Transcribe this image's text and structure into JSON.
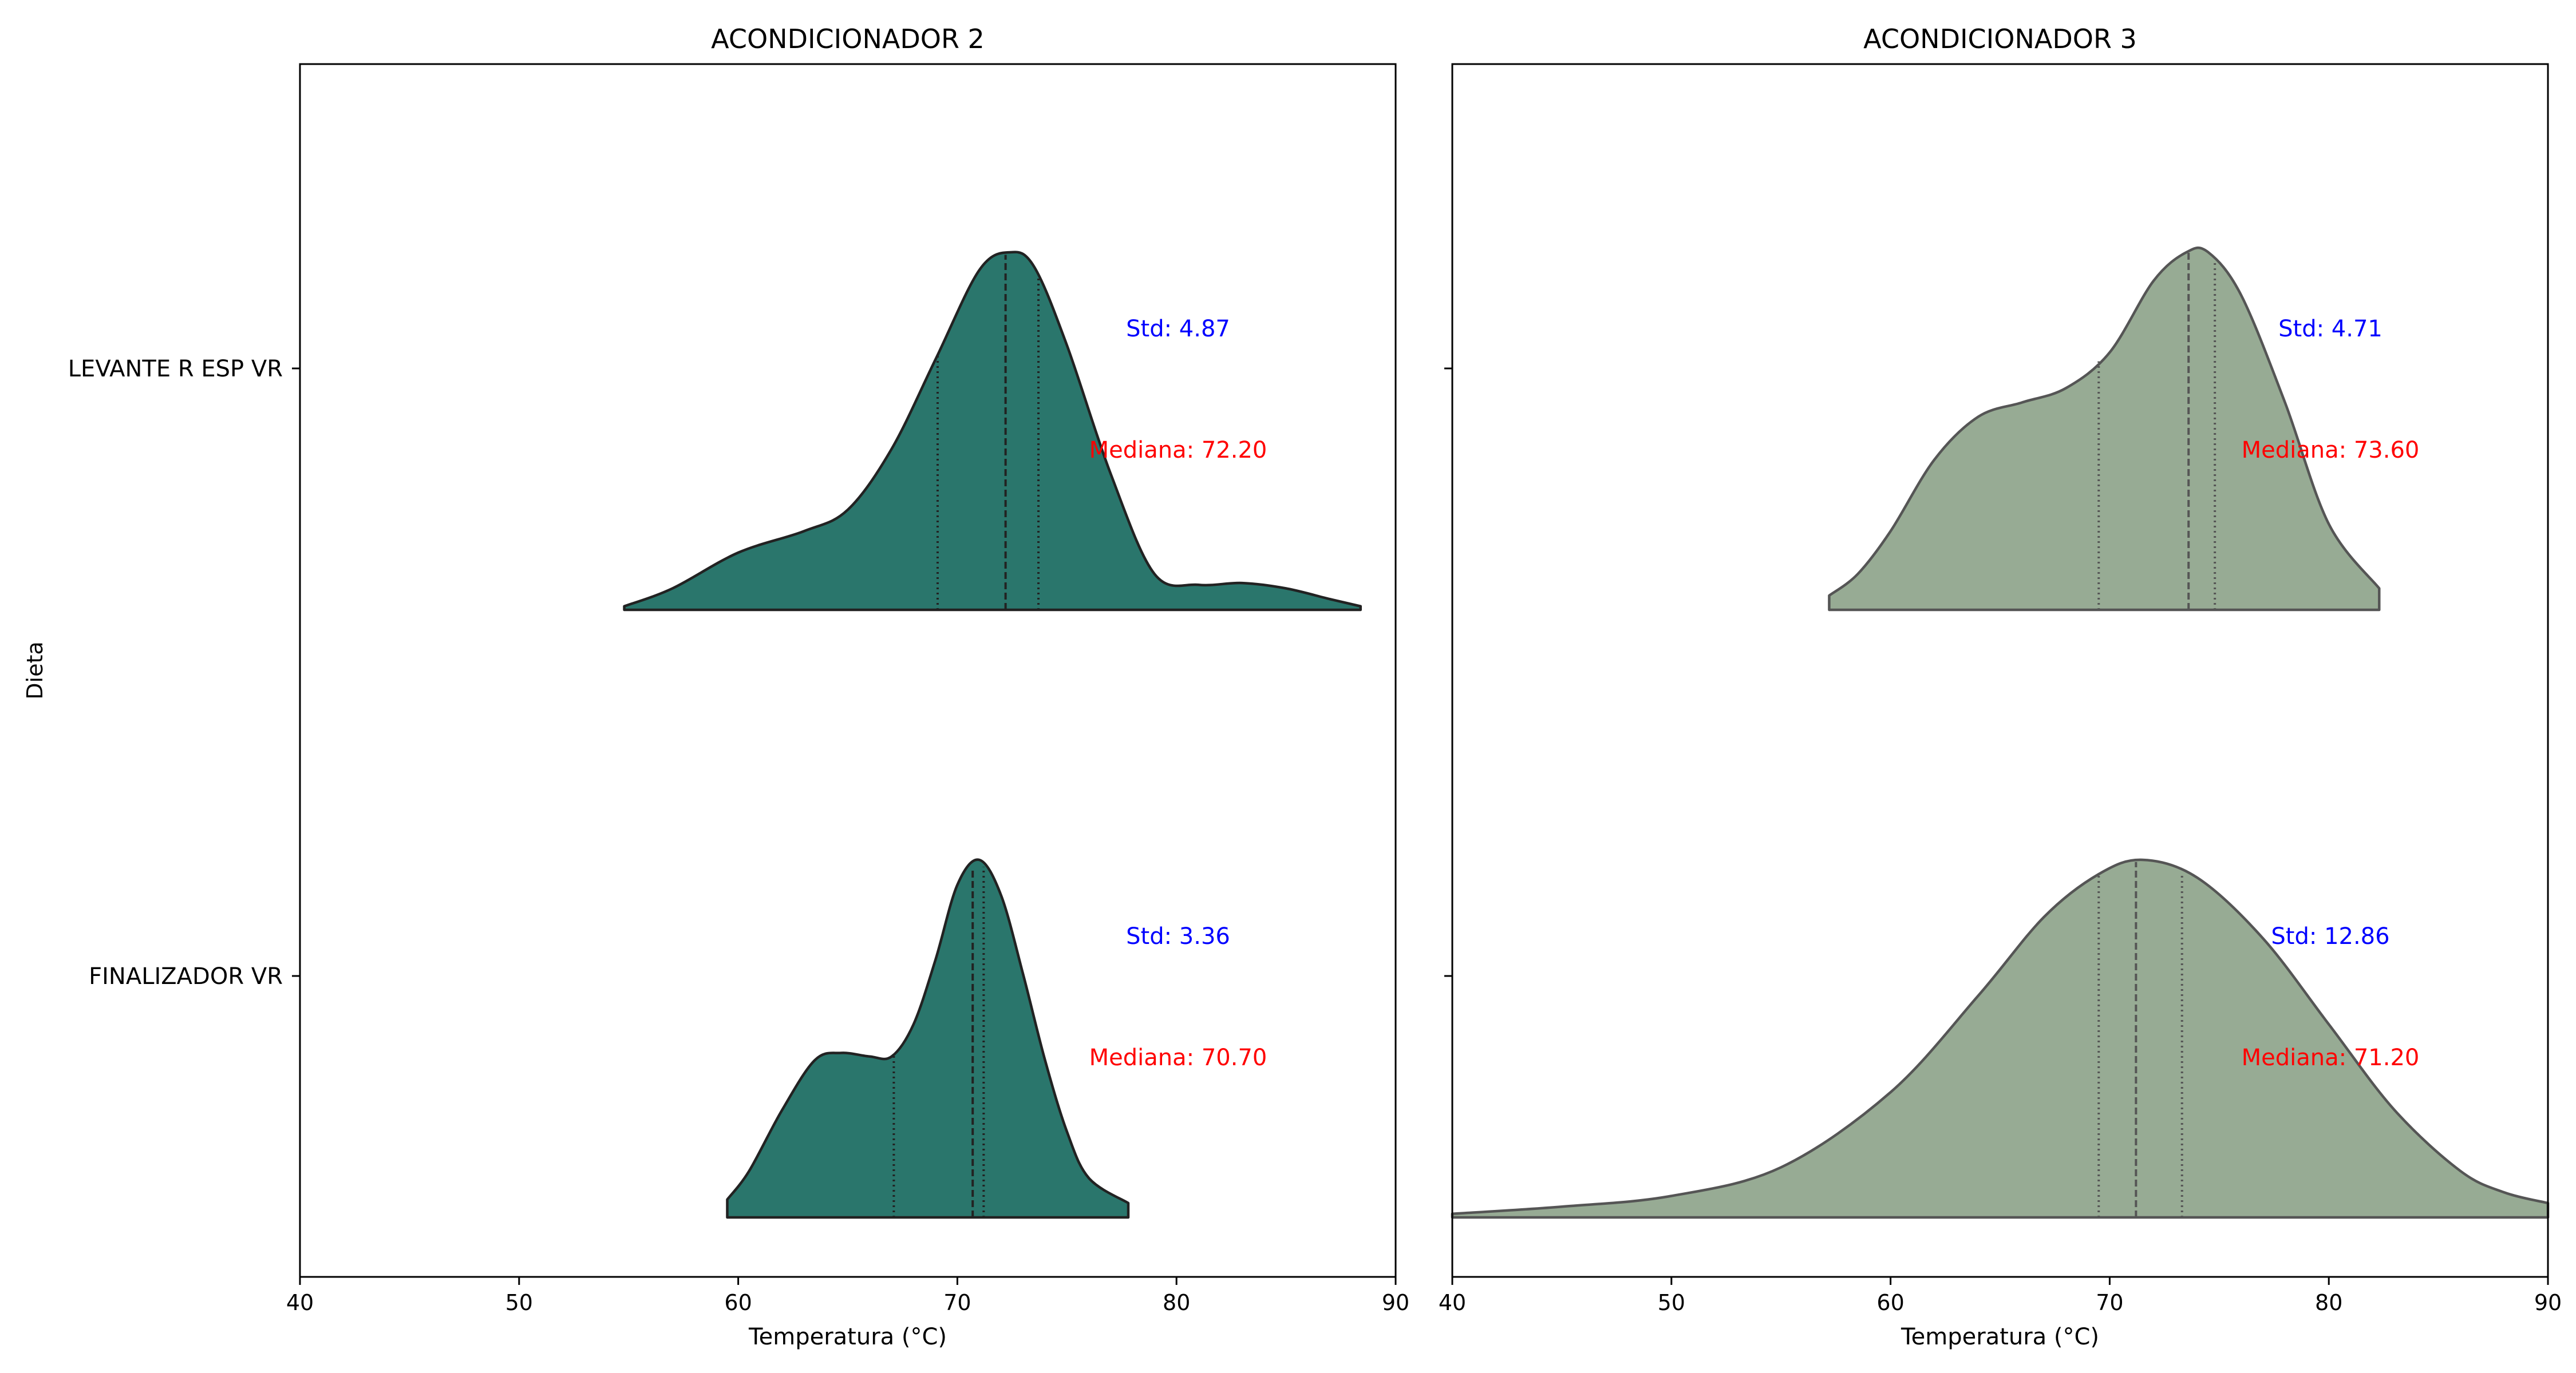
{
  "chart_data": {
    "type": "violin",
    "ylabel": "Dieta",
    "xlabel": "Temperatura (°C)",
    "categories": [
      "LEVANTE R ESP VR",
      "FINALIZADOR VR"
    ],
    "xlim": [
      40,
      90
    ],
    "xticks": [
      40,
      50,
      60,
      70,
      80,
      90
    ],
    "xtick_labels": [
      "40",
      "50",
      "60",
      "70",
      "80",
      "90"
    ],
    "std_color": "#0000ff",
    "median_color": "#ff0000",
    "panels": [
      {
        "title": "ACONDICIONADOR 2",
        "fill_color": "#2a766c",
        "edge_color": "#222222",
        "violins": [
          {
            "category": "LEVANTE R ESP VR",
            "x_min": 54.8,
            "x_max": 88.4,
            "q1": 69.1,
            "median": 72.2,
            "q3": 73.7,
            "density": [
              [
                54.8,
                0.01
              ],
              [
                57,
                0.06
              ],
              [
                60,
                0.16
              ],
              [
                63,
                0.22
              ],
              [
                65,
                0.28
              ],
              [
                67,
                0.45
              ],
              [
                69,
                0.7
              ],
              [
                71,
                0.95
              ],
              [
                72.4,
                1.0
              ],
              [
                73.5,
                0.96
              ],
              [
                75,
                0.74
              ],
              [
                77,
                0.38
              ],
              [
                79,
                0.1
              ],
              [
                81,
                0.07
              ],
              [
                83,
                0.075
              ],
              [
                85,
                0.06
              ],
              [
                87,
                0.03
              ],
              [
                88.4,
                0.01
              ]
            ],
            "std_label": "Std: 4.87",
            "median_label": "Mediana: 72.20"
          },
          {
            "category": "FINALIZADOR VR",
            "x_min": 59.5,
            "x_max": 77.8,
            "q1": 67.1,
            "median": 70.7,
            "q3": 71.2,
            "density": [
              [
                59.5,
                0.05
              ],
              [
                60.5,
                0.13
              ],
              [
                62,
                0.3
              ],
              [
                63.5,
                0.44
              ],
              [
                64.7,
                0.46
              ],
              [
                66,
                0.45
              ],
              [
                67,
                0.45
              ],
              [
                68,
                0.54
              ],
              [
                69,
                0.72
              ],
              [
                70,
                0.93
              ],
              [
                71,
                1.0
              ],
              [
                72,
                0.9
              ],
              [
                73,
                0.68
              ],
              [
                74,
                0.44
              ],
              [
                75,
                0.24
              ],
              [
                76,
                0.11
              ],
              [
                77.8,
                0.04
              ]
            ],
            "std_label": "Std: 3.36",
            "median_label": "Mediana: 70.70"
          }
        ]
      },
      {
        "title": "ACONDICIONADOR 3",
        "fill_color": "#97ab94",
        "edge_color": "#555555",
        "violins": [
          {
            "category": "LEVANTE R ESP VR",
            "x_min": 57.2,
            "x_max": 82.3,
            "q1": 69.5,
            "median": 73.6,
            "q3": 74.8,
            "density": [
              [
                57.2,
                0.04
              ],
              [
                58.5,
                0.1
              ],
              [
                60,
                0.22
              ],
              [
                62,
                0.42
              ],
              [
                64,
                0.54
              ],
              [
                66,
                0.58
              ],
              [
                68,
                0.62
              ],
              [
                70,
                0.72
              ],
              [
                72,
                0.92
              ],
              [
                73.5,
                1.0
              ],
              [
                74.5,
                1.0
              ],
              [
                76,
                0.88
              ],
              [
                78,
                0.58
              ],
              [
                80,
                0.24
              ],
              [
                82.3,
                0.06
              ]
            ],
            "std_label": "Std: 4.71",
            "median_label": "Mediana: 73.60"
          },
          {
            "category": "FINALIZADOR VR",
            "x_min": 40,
            "x_max": 90,
            "q1": 69.5,
            "median": 71.2,
            "q3": 73.3,
            "density": [
              [
                40,
                0.01
              ],
              [
                45,
                0.03
              ],
              [
                50,
                0.06
              ],
              [
                55,
                0.14
              ],
              [
                60,
                0.35
              ],
              [
                64,
                0.62
              ],
              [
                67,
                0.84
              ],
              [
                69.5,
                0.96
              ],
              [
                71.5,
                1.0
              ],
              [
                74,
                0.95
              ],
              [
                77,
                0.78
              ],
              [
                80,
                0.54
              ],
              [
                83,
                0.3
              ],
              [
                86,
                0.13
              ],
              [
                88,
                0.07
              ],
              [
                90,
                0.04
              ]
            ],
            "std_label": "Std: 12.86",
            "median_label": "Mediana: 71.20"
          }
        ]
      }
    ]
  }
}
